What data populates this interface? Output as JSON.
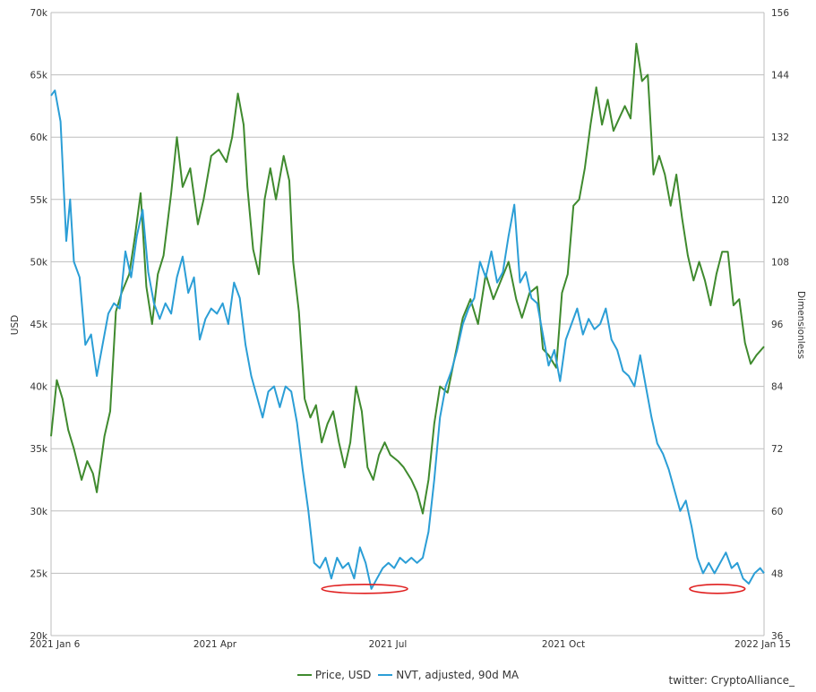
{
  "chart_data": {
    "type": "line",
    "x_ticks": [
      "2021 Jan 6",
      "2021 Apr",
      "2021 Jul",
      "2021 Oct",
      "2022 Jan 15"
    ],
    "x_range": [
      "2021-01-06",
      "2022-01-15"
    ],
    "y_left": {
      "label": "USD",
      "min": 20000,
      "max": 70000,
      "ticks": [
        "20k",
        "25k",
        "30k",
        "35k",
        "40k",
        "45k",
        "50k",
        "55k",
        "60k",
        "65k",
        "70k"
      ]
    },
    "y_right": {
      "label": "Dimensionless",
      "min": 36,
      "max": 156,
      "ticks": [
        "36",
        "48",
        "60",
        "72",
        "84",
        "96",
        "108",
        "120",
        "132",
        "144",
        "156"
      ]
    },
    "grid": true,
    "legend_position": "bottom-center",
    "series": [
      {
        "name": "Price, USD",
        "axis": "left",
        "color": "#3f8a2e",
        "points": [
          [
            "2021-01-06",
            36000
          ],
          [
            "2021-01-09",
            40500
          ],
          [
            "2021-01-12",
            39000
          ],
          [
            "2021-01-15",
            36500
          ],
          [
            "2021-01-18",
            35000
          ],
          [
            "2021-01-22",
            32500
          ],
          [
            "2021-01-25",
            34000
          ],
          [
            "2021-01-28",
            33000
          ],
          [
            "2021-01-30",
            31500
          ],
          [
            "2021-02-03",
            36000
          ],
          [
            "2021-02-06",
            38000
          ],
          [
            "2021-02-09",
            46000
          ],
          [
            "2021-02-12",
            47500
          ],
          [
            "2021-02-16",
            49000
          ],
          [
            "2021-02-19",
            52000
          ],
          [
            "2021-02-22",
            55500
          ],
          [
            "2021-02-25",
            48000
          ],
          [
            "2021-02-28",
            45000
          ],
          [
            "2021-03-03",
            49000
          ],
          [
            "2021-03-06",
            50500
          ],
          [
            "2021-03-10",
            55500
          ],
          [
            "2021-03-13",
            60000
          ],
          [
            "2021-03-16",
            56000
          ],
          [
            "2021-03-20",
            57500
          ],
          [
            "2021-03-24",
            53000
          ],
          [
            "2021-03-27",
            55000
          ],
          [
            "2021-03-31",
            58500
          ],
          [
            "2021-04-04",
            59000
          ],
          [
            "2021-04-08",
            58000
          ],
          [
            "2021-04-11",
            60000
          ],
          [
            "2021-04-14",
            63500
          ],
          [
            "2021-04-17",
            61000
          ],
          [
            "2021-04-19",
            56000
          ],
          [
            "2021-04-22",
            51000
          ],
          [
            "2021-04-25",
            49000
          ],
          [
            "2021-04-28",
            55000
          ],
          [
            "2021-05-01",
            57500
          ],
          [
            "2021-05-04",
            55000
          ],
          [
            "2021-05-08",
            58500
          ],
          [
            "2021-05-11",
            56500
          ],
          [
            "2021-05-13",
            50000
          ],
          [
            "2021-05-16",
            46000
          ],
          [
            "2021-05-19",
            39000
          ],
          [
            "2021-05-22",
            37500
          ],
          [
            "2021-05-25",
            38500
          ],
          [
            "2021-05-28",
            35500
          ],
          [
            "2021-05-31",
            37000
          ],
          [
            "2021-06-03",
            38000
          ],
          [
            "2021-06-06",
            35500
          ],
          [
            "2021-06-09",
            33500
          ],
          [
            "2021-06-12",
            35500
          ],
          [
            "2021-06-15",
            40000
          ],
          [
            "2021-06-18",
            38000
          ],
          [
            "2021-06-21",
            33500
          ],
          [
            "2021-06-24",
            32500
          ],
          [
            "2021-06-27",
            34500
          ],
          [
            "2021-06-30",
            35500
          ],
          [
            "2021-07-03",
            34500
          ],
          [
            "2021-07-07",
            34000
          ],
          [
            "2021-07-10",
            33500
          ],
          [
            "2021-07-14",
            32500
          ],
          [
            "2021-07-17",
            31500
          ],
          [
            "2021-07-20",
            29800
          ],
          [
            "2021-07-23",
            32500
          ],
          [
            "2021-07-26",
            37000
          ],
          [
            "2021-07-29",
            40000
          ],
          [
            "2021-08-02",
            39500
          ],
          [
            "2021-08-06",
            42500
          ],
          [
            "2021-08-10",
            45500
          ],
          [
            "2021-08-14",
            47000
          ],
          [
            "2021-08-18",
            45000
          ],
          [
            "2021-08-22",
            49000
          ],
          [
            "2021-08-26",
            47000
          ],
          [
            "2021-08-30",
            48500
          ],
          [
            "2021-09-03",
            50000
          ],
          [
            "2021-09-07",
            47000
          ],
          [
            "2021-09-10",
            45500
          ],
          [
            "2021-09-14",
            47500
          ],
          [
            "2021-09-18",
            48000
          ],
          [
            "2021-09-21",
            43000
          ],
          [
            "2021-09-24",
            42500
          ],
          [
            "2021-09-28",
            41500
          ],
          [
            "2021-10-01",
            47500
          ],
          [
            "2021-10-04",
            49000
          ],
          [
            "2021-10-07",
            54500
          ],
          [
            "2021-10-10",
            55000
          ],
          [
            "2021-10-13",
            57500
          ],
          [
            "2021-10-16",
            61000
          ],
          [
            "2021-10-19",
            64000
          ],
          [
            "2021-10-22",
            61000
          ],
          [
            "2021-10-25",
            63000
          ],
          [
            "2021-10-28",
            60500
          ],
          [
            "2021-10-31",
            61500
          ],
          [
            "2021-11-03",
            62500
          ],
          [
            "2021-11-06",
            61500
          ],
          [
            "2021-11-09",
            67500
          ],
          [
            "2021-11-12",
            64500
          ],
          [
            "2021-11-15",
            65000
          ],
          [
            "2021-11-18",
            57000
          ],
          [
            "2021-11-21",
            58500
          ],
          [
            "2021-11-24",
            57000
          ],
          [
            "2021-11-27",
            54500
          ],
          [
            "2021-11-30",
            57000
          ],
          [
            "2021-12-03",
            53500
          ],
          [
            "2021-12-06",
            50500
          ],
          [
            "2021-12-09",
            48500
          ],
          [
            "2021-12-12",
            50000
          ],
          [
            "2021-12-15",
            48500
          ],
          [
            "2021-12-18",
            46500
          ],
          [
            "2021-12-21",
            49000
          ],
          [
            "2021-12-24",
            50800
          ],
          [
            "2021-12-27",
            50800
          ],
          [
            "2021-12-30",
            46500
          ],
          [
            "2022-01-02",
            47000
          ],
          [
            "2022-01-05",
            43500
          ],
          [
            "2022-01-08",
            41800
          ],
          [
            "2022-01-11",
            42500
          ],
          [
            "2022-01-15",
            43200
          ]
        ]
      },
      {
        "name": "NVT, adjusted, 90d MA",
        "axis": "right",
        "color": "#2b9ed6",
        "points": [
          [
            "2021-01-06",
            140
          ],
          [
            "2021-01-08",
            141
          ],
          [
            "2021-01-11",
            135
          ],
          [
            "2021-01-14",
            112
          ],
          [
            "2021-01-16",
            120
          ],
          [
            "2021-01-18",
            108
          ],
          [
            "2021-01-21",
            105
          ],
          [
            "2021-01-24",
            92
          ],
          [
            "2021-01-27",
            94
          ],
          [
            "2021-01-30",
            86
          ],
          [
            "2021-02-02",
            92
          ],
          [
            "2021-02-05",
            98
          ],
          [
            "2021-02-08",
            100
          ],
          [
            "2021-02-11",
            99
          ],
          [
            "2021-02-14",
            110
          ],
          [
            "2021-02-17",
            105
          ],
          [
            "2021-02-20",
            113
          ],
          [
            "2021-02-23",
            118
          ],
          [
            "2021-02-26",
            106
          ],
          [
            "2021-03-01",
            100
          ],
          [
            "2021-03-04",
            97
          ],
          [
            "2021-03-07",
            100
          ],
          [
            "2021-03-10",
            98
          ],
          [
            "2021-03-13",
            105
          ],
          [
            "2021-03-16",
            109
          ],
          [
            "2021-03-19",
            102
          ],
          [
            "2021-03-22",
            105
          ],
          [
            "2021-03-25",
            93
          ],
          [
            "2021-03-28",
            97
          ],
          [
            "2021-03-31",
            99
          ],
          [
            "2021-04-03",
            98
          ],
          [
            "2021-04-06",
            100
          ],
          [
            "2021-04-09",
            96
          ],
          [
            "2021-04-12",
            104
          ],
          [
            "2021-04-15",
            101
          ],
          [
            "2021-04-18",
            92
          ],
          [
            "2021-04-21",
            86
          ],
          [
            "2021-04-24",
            82
          ],
          [
            "2021-04-27",
            78
          ],
          [
            "2021-04-30",
            83
          ],
          [
            "2021-05-03",
            84
          ],
          [
            "2021-05-06",
            80
          ],
          [
            "2021-05-09",
            84
          ],
          [
            "2021-05-12",
            83
          ],
          [
            "2021-05-15",
            77
          ],
          [
            "2021-05-18",
            68
          ],
          [
            "2021-05-21",
            60
          ],
          [
            "2021-05-24",
            50
          ],
          [
            "2021-05-27",
            49
          ],
          [
            "2021-05-30",
            51
          ],
          [
            "2021-06-02",
            47
          ],
          [
            "2021-06-05",
            51
          ],
          [
            "2021-06-08",
            49
          ],
          [
            "2021-06-11",
            50
          ],
          [
            "2021-06-14",
            47
          ],
          [
            "2021-06-17",
            53
          ],
          [
            "2021-06-20",
            50
          ],
          [
            "2021-06-23",
            45
          ],
          [
            "2021-06-26",
            47
          ],
          [
            "2021-06-29",
            49
          ],
          [
            "2021-07-02",
            50
          ],
          [
            "2021-07-05",
            49
          ],
          [
            "2021-07-08",
            51
          ],
          [
            "2021-07-11",
            50
          ],
          [
            "2021-07-14",
            51
          ],
          [
            "2021-07-17",
            50
          ],
          [
            "2021-07-20",
            51
          ],
          [
            "2021-07-23",
            56
          ],
          [
            "2021-07-26",
            66
          ],
          [
            "2021-07-29",
            78
          ],
          [
            "2021-08-01",
            84
          ],
          [
            "2021-08-04",
            87
          ],
          [
            "2021-08-07",
            91
          ],
          [
            "2021-08-10",
            96
          ],
          [
            "2021-08-13",
            99
          ],
          [
            "2021-08-16",
            101
          ],
          [
            "2021-08-19",
            108
          ],
          [
            "2021-08-22",
            105
          ],
          [
            "2021-08-25",
            110
          ],
          [
            "2021-08-28",
            104
          ],
          [
            "2021-08-31",
            106
          ],
          [
            "2021-09-03",
            113
          ],
          [
            "2021-09-06",
            119
          ],
          [
            "2021-09-09",
            104
          ],
          [
            "2021-09-12",
            106
          ],
          [
            "2021-09-15",
            101
          ],
          [
            "2021-09-18",
            100
          ],
          [
            "2021-09-21",
            94
          ],
          [
            "2021-09-24",
            88
          ],
          [
            "2021-09-27",
            91
          ],
          [
            "2021-09-30",
            85
          ],
          [
            "2021-10-03",
            93
          ],
          [
            "2021-10-06",
            96
          ],
          [
            "2021-10-09",
            99
          ],
          [
            "2021-10-12",
            94
          ],
          [
            "2021-10-15",
            97
          ],
          [
            "2021-10-18",
            95
          ],
          [
            "2021-10-21",
            96
          ],
          [
            "2021-10-24",
            99
          ],
          [
            "2021-10-27",
            93
          ],
          [
            "2021-10-30",
            91
          ],
          [
            "2021-11-02",
            87
          ],
          [
            "2021-11-05",
            86
          ],
          [
            "2021-11-08",
            84
          ],
          [
            "2021-11-11",
            90
          ],
          [
            "2021-11-14",
            84
          ],
          [
            "2021-11-17",
            78
          ],
          [
            "2021-11-20",
            73
          ],
          [
            "2021-11-23",
            71
          ],
          [
            "2021-11-26",
            68
          ],
          [
            "2021-11-29",
            64
          ],
          [
            "2021-12-02",
            60
          ],
          [
            "2021-12-05",
            62
          ],
          [
            "2021-12-08",
            57
          ],
          [
            "2021-12-11",
            51
          ],
          [
            "2021-12-14",
            48
          ],
          [
            "2021-12-17",
            50
          ],
          [
            "2021-12-20",
            48
          ],
          [
            "2021-12-23",
            50
          ],
          [
            "2021-12-26",
            52
          ],
          [
            "2021-12-29",
            49
          ],
          [
            "2022-01-01",
            50
          ],
          [
            "2022-01-04",
            47
          ],
          [
            "2022-01-07",
            46
          ],
          [
            "2022-01-10",
            48
          ],
          [
            "2022-01-13",
            49
          ],
          [
            "2022-01-15",
            48
          ]
        ]
      }
    ],
    "annotations": [
      {
        "type": "ellipse",
        "color": "#e02020",
        "x_from": "2021-05-28",
        "x_to": "2021-07-12",
        "y_right": 45
      },
      {
        "type": "ellipse",
        "color": "#e02020",
        "x_from": "2021-12-07",
        "x_to": "2022-01-05",
        "y_right": 45
      }
    ]
  },
  "credit": "twitter: CryptoAlliance_"
}
